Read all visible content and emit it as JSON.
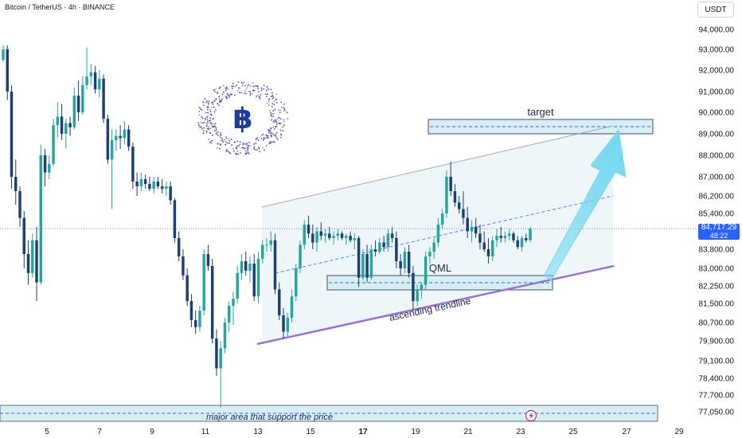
{
  "header": {
    "symbol": "Bitcoin / TetherUS · 4h · BINANCE",
    "currency": "USDT"
  },
  "last_price": {
    "value": "84,717.29",
    "countdown": "48:22"
  },
  "annotations": {
    "target": "target",
    "qml": "QML",
    "ascending_trendline": "ascending trendline",
    "support_zone": "major area that support the price"
  },
  "colors": {
    "up": "#26a69a",
    "down": "#1c3f75",
    "zone": "#d9ecf3",
    "trendline": "#9575cd",
    "arrow": "#6fd6ee",
    "accent": "#2962ff"
  },
  "icons": {
    "logo": "bitcoin-logo-icon",
    "lightning": "lightning-icon"
  },
  "chart_data": {
    "type": "candlestick",
    "ylim": [
      76800,
      94700
    ],
    "y_ticks": [
      "94,000.00",
      "93,000.00",
      "92,000.00",
      "91,000.00",
      "90,000.00",
      "89,000.00",
      "88,000.00",
      "87,000.00",
      "86,200.00",
      "85,400.00",
      "83,800.00",
      "83,000.00",
      "82,250.00",
      "81,500.00",
      "80,700.00",
      "79,900.00",
      "79,100.00",
      "78,400.00",
      "77,700.00",
      "77,050.00"
    ],
    "x_ticks": [
      "5",
      "7",
      "9",
      "11",
      "13",
      "15",
      "17",
      "19",
      "21",
      "23",
      "25",
      "27",
      "29"
    ],
    "candles": [
      [
        92500,
        93200,
        92400,
        93000
      ],
      [
        93000,
        93200,
        90600,
        91000
      ],
      [
        91000,
        91300,
        86500,
        87000
      ],
      [
        87000,
        87800,
        85800,
        86400
      ],
      [
        86400,
        86600,
        84800,
        85200
      ],
      [
        85200,
        85500,
        83000,
        83600
      ],
      [
        83600,
        84200,
        82300,
        82800
      ],
      [
        82800,
        84500,
        82600,
        84200
      ],
      [
        84200,
        84800,
        81600,
        82400
      ],
      [
        82400,
        88500,
        82300,
        88000
      ],
      [
        88000,
        88300,
        86600,
        87200
      ],
      [
        87200,
        88000,
        86900,
        87600
      ],
      [
        87600,
        89700,
        87500,
        89400
      ],
      [
        89400,
        90500,
        88800,
        89800
      ],
      [
        89800,
        90400,
        88700,
        89000
      ],
      [
        89000,
        89700,
        88300,
        89500
      ],
      [
        89500,
        89800,
        88900,
        89300
      ],
      [
        89300,
        91200,
        89200,
        90800
      ],
      [
        90800,
        91500,
        89600,
        90000
      ],
      [
        90000,
        91700,
        89900,
        91300
      ],
      [
        91300,
        93100,
        91100,
        91700
      ],
      [
        91700,
        92300,
        91300,
        91900
      ],
      [
        91900,
        92200,
        90900,
        91100
      ],
      [
        91100,
        92000,
        90700,
        91600
      ],
      [
        91600,
        91800,
        89500,
        89700
      ],
      [
        89700,
        89900,
        87600,
        87800
      ],
      [
        87800,
        89200,
        85600,
        88700
      ],
      [
        88700,
        89200,
        88200,
        88900
      ],
      [
        88900,
        89400,
        88300,
        88800
      ],
      [
        88800,
        89600,
        88500,
        89200
      ],
      [
        89200,
        89400,
        88200,
        88400
      ],
      [
        88400,
        88600,
        86500,
        86800
      ],
      [
        86800,
        87200,
        86200,
        86600
      ],
      [
        86600,
        87200,
        86400,
        86900
      ],
      [
        86900,
        87100,
        86500,
        86700
      ],
      [
        86700,
        87000,
        86400,
        86500
      ],
      [
        86500,
        87000,
        86300,
        86800
      ],
      [
        86800,
        87000,
        86500,
        86600
      ],
      [
        86600,
        86900,
        86300,
        86500
      ],
      [
        86500,
        86800,
        86200,
        86600
      ],
      [
        86600,
        86800,
        85800,
        86000
      ],
      [
        86000,
        86100,
        84100,
        84300
      ],
      [
        84300,
        84600,
        83300,
        83500
      ],
      [
        83500,
        83800,
        82500,
        82700
      ],
      [
        82700,
        83000,
        81400,
        81600
      ],
      [
        81600,
        81900,
        80500,
        80800
      ],
      [
        80800,
        81200,
        80200,
        80500
      ],
      [
        80500,
        81400,
        80300,
        81200
      ],
      [
        81200,
        83800,
        81000,
        83600
      ],
      [
        83600,
        84000,
        82900,
        83100
      ],
      [
        83100,
        83400,
        79800,
        80000
      ],
      [
        80000,
        80400,
        78500,
        78800
      ],
      [
        78800,
        79900,
        77200,
        79600
      ],
      [
        79600,
        80900,
        79400,
        80700
      ],
      [
        80700,
        81600,
        80300,
        81400
      ],
      [
        81400,
        82000,
        80600,
        81700
      ],
      [
        81700,
        83100,
        81500,
        82800
      ],
      [
        82800,
        83600,
        82500,
        83300
      ],
      [
        83300,
        83700,
        82700,
        82900
      ],
      [
        82900,
        83500,
        82400,
        83200
      ],
      [
        83200,
        83600,
        81600,
        81800
      ],
      [
        81800,
        83700,
        81500,
        83400
      ],
      [
        83400,
        84200,
        83200,
        84000
      ],
      [
        84000,
        84300,
        83700,
        84000
      ],
      [
        84000,
        84600,
        83700,
        84200
      ],
      [
        84200,
        84500,
        81900,
        82100
      ],
      [
        82100,
        82400,
        80800,
        81000
      ],
      [
        81000,
        81300,
        80000,
        80300
      ],
      [
        80300,
        81100,
        80100,
        80900
      ],
      [
        80900,
        82100,
        80700,
        81800
      ],
      [
        81800,
        83200,
        81600,
        83000
      ],
      [
        83000,
        84200,
        82800,
        84000
      ],
      [
        84000,
        85100,
        83800,
        84900
      ],
      [
        84900,
        85300,
        84300,
        84500
      ],
      [
        84500,
        84900,
        83800,
        84100
      ],
      [
        84100,
        84800,
        83700,
        84600
      ],
      [
        84600,
        85000,
        84200,
        84400
      ],
      [
        84400,
        84700,
        84100,
        84500
      ],
      [
        84500,
        84800,
        84200,
        84300
      ],
      [
        84300,
        84600,
        84000,
        84400
      ],
      [
        84400,
        84700,
        84200,
        84500
      ],
      [
        84500,
        84600,
        84200,
        84300
      ],
      [
        84300,
        84500,
        84000,
        84400
      ],
      [
        84400,
        84600,
        84100,
        84200
      ],
      [
        84200,
        84500,
        83800,
        84300
      ],
      [
        84300,
        84400,
        82200,
        82600
      ],
      [
        82600,
        83800,
        82500,
        83600
      ],
      [
        83600,
        84000,
        82400,
        82600
      ],
      [
        82600,
        84000,
        82500,
        83800
      ],
      [
        83800,
        84200,
        83500,
        83700
      ],
      [
        83700,
        84300,
        83600,
        84100
      ],
      [
        84100,
        84400,
        83700,
        83900
      ],
      [
        83900,
        84700,
        83700,
        84500
      ],
      [
        84500,
        84800,
        84100,
        84300
      ],
      [
        84300,
        84600,
        83000,
        83300
      ],
      [
        83300,
        83600,
        82700,
        83000
      ],
      [
        83000,
        83900,
        82800,
        83700
      ],
      [
        83700,
        84000,
        82600,
        82800
      ],
      [
        82800,
        83100,
        81200,
        81600
      ],
      [
        81600,
        82300,
        81400,
        82100
      ],
      [
        82100,
        82400,
        81700,
        82300
      ],
      [
        82300,
        83700,
        82100,
        83500
      ],
      [
        83500,
        83900,
        83200,
        83700
      ],
      [
        83700,
        84300,
        83400,
        84100
      ],
      [
        84100,
        85200,
        83900,
        84900
      ],
      [
        84900,
        85600,
        84700,
        85400
      ],
      [
        85400,
        87300,
        85200,
        87000
      ],
      [
        87000,
        87700,
        86200,
        86400
      ],
      [
        86400,
        86700,
        85700,
        85900
      ],
      [
        85900,
        86200,
        85400,
        85600
      ],
      [
        85600,
        86400,
        84900,
        85200
      ],
      [
        85200,
        85700,
        84300,
        84600
      ],
      [
        84600,
        85100,
        84100,
        84800
      ],
      [
        84800,
        85200,
        84300,
        84500
      ],
      [
        84500,
        84900,
        83800,
        84100
      ],
      [
        84100,
        84600,
        83700,
        83800
      ],
      [
        83800,
        84300,
        83200,
        83500
      ],
      [
        83500,
        84400,
        83300,
        84200
      ],
      [
        84200,
        84700,
        83900,
        84400
      ],
      [
        84400,
        84800,
        84100,
        84300
      ],
      [
        84300,
        84600,
        84100,
        84400
      ],
      [
        84400,
        84700,
        84200,
        84500
      ],
      [
        84500,
        84600,
        84100,
        84200
      ],
      [
        84200,
        84400,
        83800,
        83900
      ],
      [
        83900,
        84400,
        83700,
        84300
      ],
      [
        84300,
        84500,
        84100,
        84200
      ],
      [
        84200,
        84800,
        84100,
        84717
      ]
    ]
  }
}
